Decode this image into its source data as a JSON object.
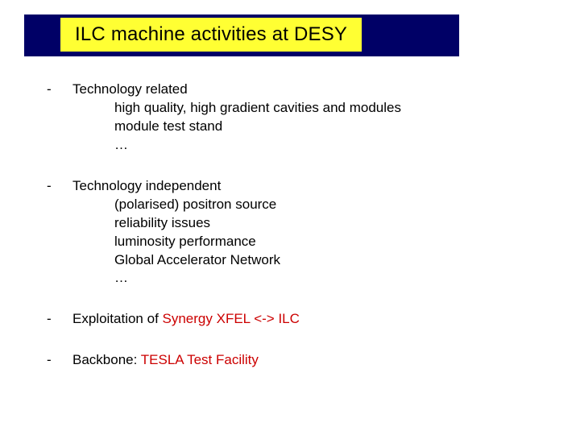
{
  "title": "ILC machine activities at DESY",
  "colors": {
    "band": "#000066",
    "titleBg": "#ffff33",
    "text": "#000000",
    "accent": "#cc0000",
    "pageBg": "#ffffff"
  },
  "bullets": {
    "dash": "-",
    "ellipsis": "…"
  },
  "items": [
    {
      "lead": "Technology related",
      "subs": [
        "high quality, high gradient cavities and modules",
        "module test stand",
        "…"
      ]
    },
    {
      "lead": "Technology independent",
      "subs": [
        "(polarised) positron source",
        "reliability issues",
        "luminosity performance",
        "Global Accelerator Network",
        "…"
      ]
    }
  ],
  "synergy": {
    "prefix": "Exploitation of  ",
    "accent": "Synergy XFEL <-> ILC"
  },
  "backbone": {
    "prefix": "Backbone:  ",
    "accent": "TESLA Test Facility"
  }
}
